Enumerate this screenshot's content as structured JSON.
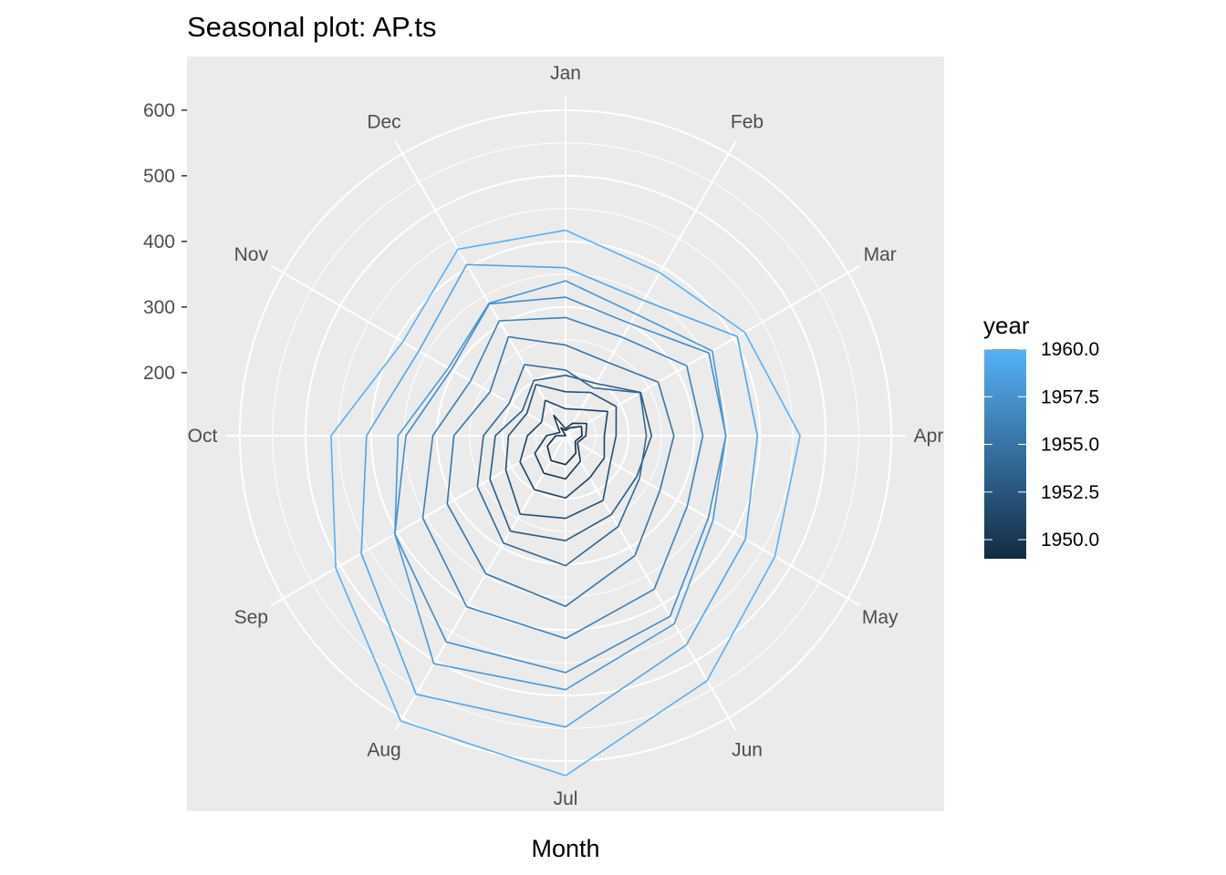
{
  "chart_data": {
    "type": "line",
    "coord": "polar",
    "title": "Seasonal plot: AP.ts",
    "xlabel": "Month",
    "ylabel": "",
    "categories": [
      "Jan",
      "Feb",
      "Mar",
      "Apr",
      "May",
      "Jun",
      "Jul",
      "Aug",
      "Sep",
      "Oct",
      "Nov",
      "Dec"
    ],
    "r_ticks": [
      200,
      300,
      400,
      500,
      600
    ],
    "r_tick_labels": [
      "200",
      "300",
      "400",
      "500",
      "600"
    ],
    "r_range": [
      104,
      622
    ],
    "panel_background": "#ebebeb",
    "grid_color": "#ffffff",
    "legend": {
      "title": "year",
      "position": "right",
      "type": "colorbar",
      "low_color": "#132B43",
      "high_color": "#56B1F7",
      "range": [
        1949,
        1960
      ],
      "breaks": [
        1960.0,
        1957.5,
        1955.0,
        1952.5,
        1950.0
      ],
      "labels": [
        "1960.0",
        "1957.5",
        "1955.0",
        "1952.5",
        "1950.0"
      ]
    },
    "series": [
      {
        "year": 1949,
        "values": [
          112,
          118,
          132,
          129,
          121,
          135,
          148,
          148,
          136,
          119,
          104,
          118
        ]
      },
      {
        "year": 1950,
        "values": [
          115,
          126,
          141,
          135,
          125,
          149,
          170,
          170,
          158,
          133,
          114,
          140
        ]
      },
      {
        "year": 1951,
        "values": [
          145,
          150,
          178,
          163,
          172,
          178,
          199,
          199,
          184,
          162,
          146,
          166
        ]
      },
      {
        "year": 1952,
        "values": [
          171,
          180,
          193,
          181,
          183,
          218,
          230,
          242,
          209,
          191,
          172,
          194
        ]
      },
      {
        "year": 1953,
        "values": [
          196,
          196,
          236,
          235,
          229,
          243,
          264,
          272,
          237,
          211,
          180,
          201
        ]
      },
      {
        "year": 1954,
        "values": [
          204,
          188,
          235,
          227,
          234,
          264,
          302,
          293,
          259,
          229,
          203,
          229
        ]
      },
      {
        "year": 1955,
        "values": [
          242,
          233,
          267,
          269,
          270,
          315,
          364,
          347,
          312,
          274,
          237,
          278
        ]
      },
      {
        "year": 1956,
        "values": [
          284,
          277,
          317,
          313,
          318,
          374,
          413,
          405,
          355,
          306,
          271,
          306
        ]
      },
      {
        "year": 1957,
        "values": [
          315,
          301,
          356,
          348,
          355,
          422,
          465,
          467,
          404,
          347,
          305,
          336
        ]
      },
      {
        "year": 1958,
        "values": [
          340,
          318,
          362,
          348,
          363,
          435,
          491,
          505,
          404,
          359,
          310,
          337
        ]
      },
      {
        "year": 1959,
        "values": [
          360,
          342,
          406,
          396,
          420,
          472,
          548,
          559,
          463,
          407,
          362,
          405
        ]
      },
      {
        "year": 1960,
        "values": [
          417,
          391,
          419,
          461,
          472,
          535,
          622,
          606,
          508,
          461,
          390,
          432
        ]
      }
    ]
  }
}
